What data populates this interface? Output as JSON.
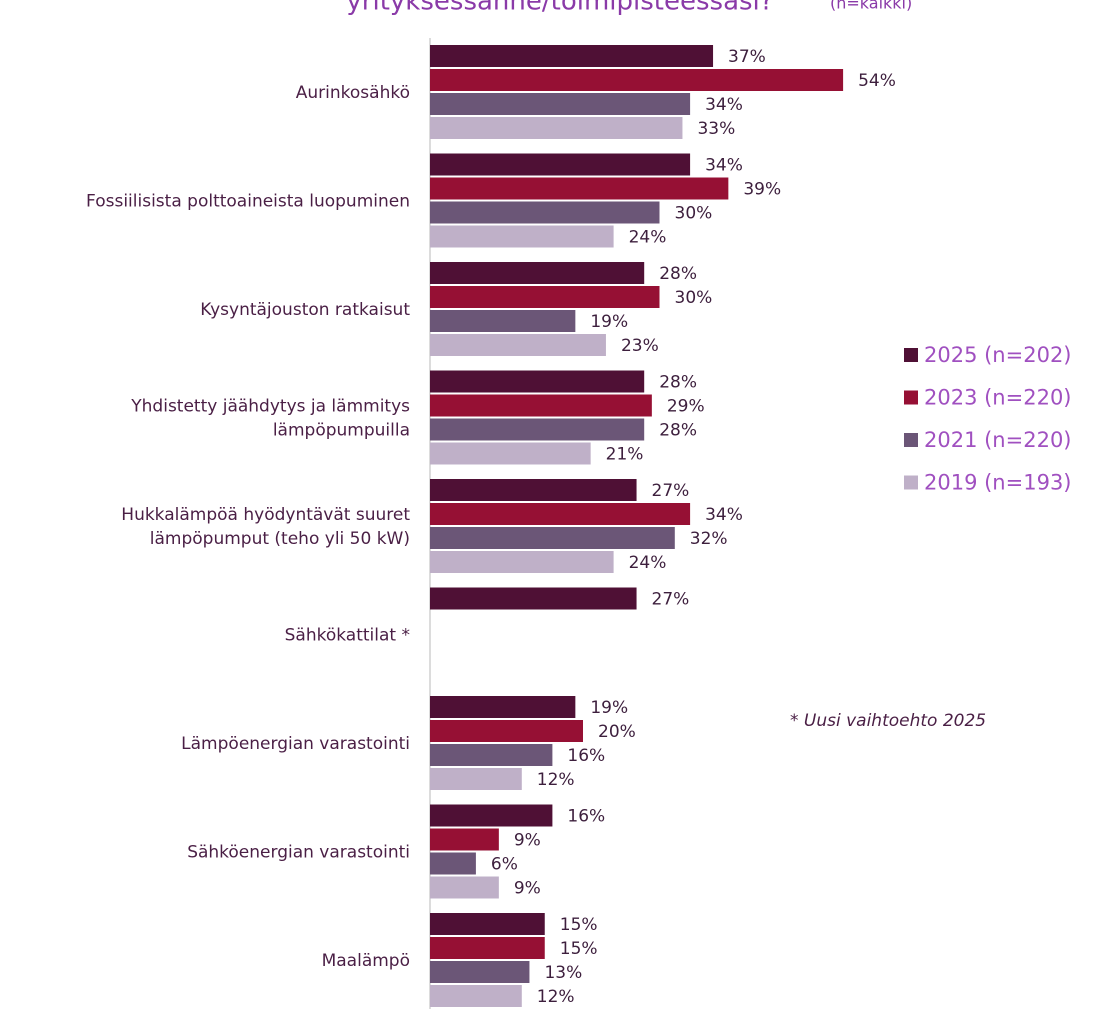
{
  "chart_data": {
    "type": "barh",
    "title": "yrityksessänne/toimipisteessäsi?",
    "subtitle": "(n=kaikki)",
    "annotation": "* Uusi vaihtoehto 2025",
    "categories": [
      "Aurinkosähkö",
      "Fossiilisista polttoaineista luopuminen",
      "Kysyntäjouston ratkaisut",
      "Yhdistetty jäähdytys ja lämmitys\nlämpöpumpuilla",
      "Hukkalämpöä hyödyntävät suuret\nlämpöpumput (teho yli 50 kW)",
      "Sähkökattilat *",
      "Lämpöenergian varastointi",
      "Sähköenergian varastointi",
      "Maalämpö"
    ],
    "series": [
      {
        "name": "2025 (n=202)",
        "color": "#4f1035",
        "values": [
          37,
          34,
          28,
          28,
          27,
          27,
          19,
          16,
          15
        ],
        "value_labels": [
          "37%",
          "34%",
          "28%",
          "28%",
          "27%",
          "27%",
          "19%",
          "16%",
          "15%"
        ]
      },
      {
        "name": "2023 (n=220)",
        "color": "#961034",
        "values": [
          54,
          39,
          30,
          29,
          34,
          null,
          20,
          9,
          15
        ],
        "value_labels": [
          "54%",
          "39%",
          "30%",
          "29%",
          "34%",
          null,
          "20%",
          "9%",
          "15%"
        ]
      },
      {
        "name": "2021 (n=220)",
        "color": "#6b5677",
        "values": [
          34,
          30,
          19,
          28,
          32,
          null,
          16,
          6,
          13
        ],
        "value_labels": [
          "34%",
          "30%",
          "19%",
          "28%",
          "32%",
          null,
          "16%",
          "6%",
          "13%"
        ]
      },
      {
        "name": "2019 (n=193)",
        "color": "#bfb0c8",
        "values": [
          33,
          24,
          23,
          21,
          24,
          null,
          12,
          9,
          12
        ],
        "value_labels": [
          "33%",
          "24%",
          "23%",
          "21%",
          "24%",
          null,
          "12%",
          "9%",
          "12%"
        ]
      }
    ],
    "legend": "right"
  }
}
